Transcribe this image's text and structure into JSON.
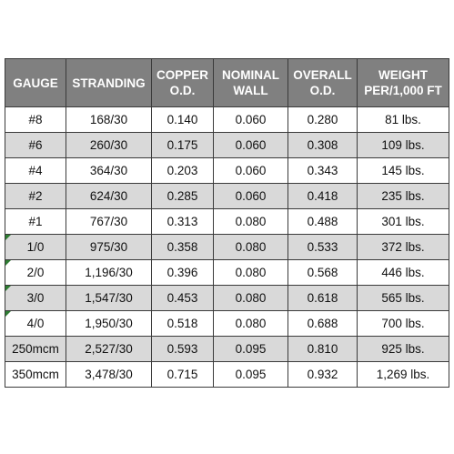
{
  "headers": [
    {
      "line1": "GAUGE",
      "line2": ""
    },
    {
      "line1": "STRANDING",
      "line2": ""
    },
    {
      "line1": "COPPER",
      "line2": "O.D."
    },
    {
      "line1": "NOMINAL",
      "line2": "WALL"
    },
    {
      "line1": "OVERALL",
      "line2": "O.D."
    },
    {
      "line1": "WEIGHT",
      "line2": "PER/1,000 FT"
    }
  ],
  "rows": [
    {
      "gauge": "#8",
      "stranding": "168/30",
      "copper_od": "0.140",
      "nominal_wall": "0.060",
      "overall_od": "0.280",
      "weight": "81 lbs."
    },
    {
      "gauge": "#6",
      "stranding": "260/30",
      "copper_od": "0.175",
      "nominal_wall": "0.060",
      "overall_od": "0.308",
      "weight": "109 lbs."
    },
    {
      "gauge": "#4",
      "stranding": "364/30",
      "copper_od": "0.203",
      "nominal_wall": "0.060",
      "overall_od": "0.343",
      "weight": "145 lbs."
    },
    {
      "gauge": "#2",
      "stranding": "624/30",
      "copper_od": "0.285",
      "nominal_wall": "0.060",
      "overall_od": "0.418",
      "weight": "235 lbs."
    },
    {
      "gauge": "#1",
      "stranding": "767/30",
      "copper_od": "0.313",
      "nominal_wall": "0.080",
      "overall_od": "0.488",
      "weight": "301 lbs."
    },
    {
      "gauge": "1/0",
      "stranding": "975/30",
      "copper_od": "0.358",
      "nominal_wall": "0.080",
      "overall_od": "0.533",
      "weight": "372 lbs."
    },
    {
      "gauge": "2/0",
      "stranding": "1,196/30",
      "copper_od": "0.396",
      "nominal_wall": "0.080",
      "overall_od": "0.568",
      "weight": "446 lbs."
    },
    {
      "gauge": "3/0",
      "stranding": "1,547/30",
      "copper_od": "0.453",
      "nominal_wall": "0.080",
      "overall_od": "0.618",
      "weight": "565 lbs."
    },
    {
      "gauge": "4/0",
      "stranding": "1,950/30",
      "copper_od": "0.518",
      "nominal_wall": "0.080",
      "overall_od": "0.688",
      "weight": "700 lbs."
    },
    {
      "gauge": "250mcm",
      "stranding": "2,527/30",
      "copper_od": "0.593",
      "nominal_wall": "0.095",
      "overall_od": "0.810",
      "weight": "925 lbs."
    },
    {
      "gauge": "350mcm",
      "stranding": "3,478/30",
      "copper_od": "0.715",
      "nominal_wall": "0.095",
      "overall_od": "0.932",
      "weight": "1,269 lbs."
    }
  ],
  "colors": {
    "header_bg": "#808080",
    "header_text": "#ffffff",
    "shaded_row_bg": "#d9d9d9",
    "border": "#3a3a3a",
    "cell_indicator": "#2e7d32"
  }
}
